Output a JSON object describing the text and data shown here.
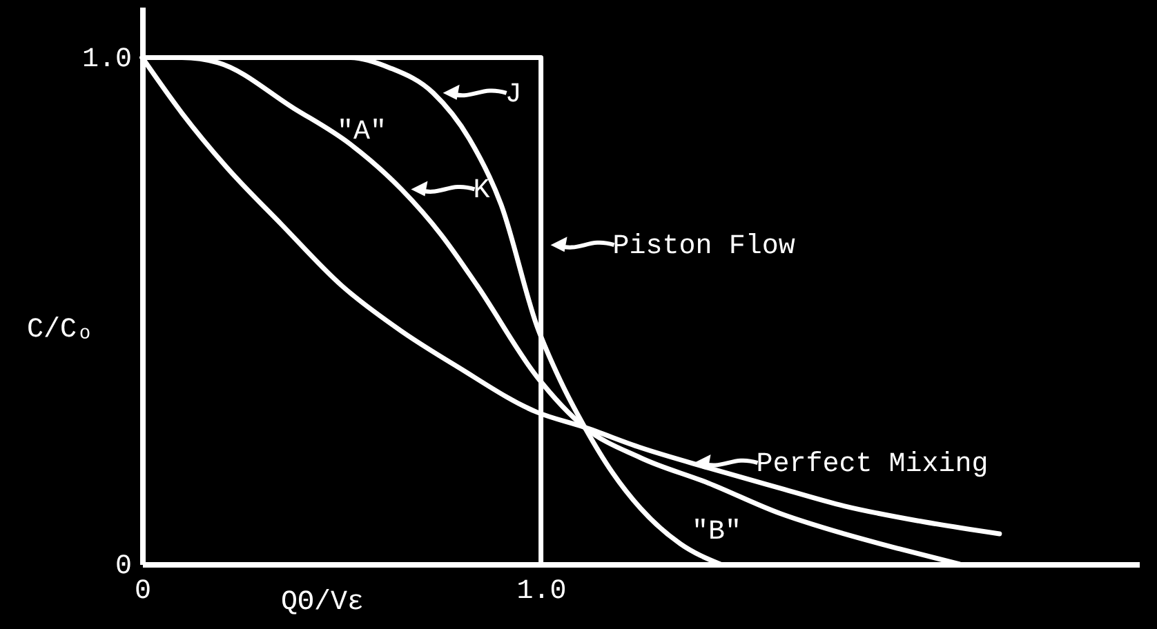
{
  "chart_data": {
    "type": "line",
    "xlabel": "QΘ/Vε",
    "ylabel": "C/Cₒ",
    "xlim": [
      0,
      2.5
    ],
    "ylim": [
      0,
      1.1
    ],
    "xticks": [
      0,
      {
        "value": 1,
        "label": "1.0"
      }
    ],
    "yticks": [
      0,
      {
        "value": 1,
        "label": "1.0"
      }
    ],
    "series": [
      {
        "color": "#ffffff",
        "x": [
          0,
          0.3,
          0.52,
          0.62,
          0.73,
          0.82,
          0.9,
          0.99,
          1.05,
          1.11,
          1.18,
          1.25,
          1.35,
          1.45
        ],
        "values": [
          1,
          1,
          1,
          0.98,
          0.93,
          0.84,
          0.71,
          0.47,
          0.36,
          0.27,
          0.18,
          0.11,
          0.04,
          0
        ]
      },
      {
        "color": "#ffffff",
        "x": [
          0,
          0.1,
          0.19,
          0.38,
          0.52,
          0.65,
          0.75,
          0.84,
          0.99,
          1.11,
          1.25,
          1.42,
          1.6,
          1.76,
          1.9,
          2.05
        ],
        "values": [
          1,
          1,
          0.99,
          0.9,
          0.83,
          0.74,
          0.65,
          0.55,
          0.37,
          0.27,
          0.21,
          0.16,
          0.1,
          0.06,
          0.03,
          0
        ]
      },
      {
        "color": "#ffffff",
        "x": [
          0,
          0.1,
          0.21,
          0.35,
          0.5,
          0.65,
          0.79,
          0.99,
          1.11,
          1.25,
          1.42,
          1.6,
          1.76,
          1.95,
          2.15
        ],
        "values": [
          1,
          0.89,
          0.785,
          0.67,
          0.55,
          0.46,
          0.39,
          0.3,
          0.27,
          0.23,
          0.19,
          0.15,
          0.115,
          0.085,
          0.06
        ]
      },
      {
        "color": "#ffffff",
        "x": [
          0,
          1,
          1
        ],
        "values": [
          1,
          1,
          0
        ]
      }
    ],
    "annotations": [
      {
        "text": "J",
        "x": 0.73,
        "y": 0.93
      },
      "\"A\"",
      {
        "text": "K",
        "x": 0.65,
        "y": 0.74
      },
      {
        "text": "Piston Flow",
        "x": 1.0,
        "y": 0.63
      },
      {
        "text": "Perfect Mixing",
        "x": 1.36,
        "y": 0.2
      },
      "\"B\""
    ]
  }
}
